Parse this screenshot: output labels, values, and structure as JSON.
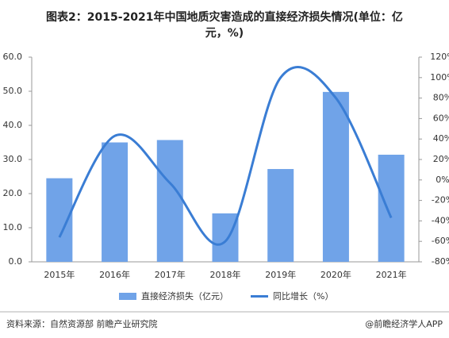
{
  "chart_data": {
    "type": "bar-line",
    "title": "图表2：2015-2021年中国地质灾害造成的直接经济损失情况(单位：亿元，%)",
    "categories": [
      "2015年",
      "2016年",
      "2017年",
      "2018年",
      "2019年",
      "2020年",
      "2021年"
    ],
    "series": [
      {
        "name": "直接经济损失（亿元）",
        "color": "#70a3e8",
        "type": "bar",
        "values": [
          24.5,
          35.0,
          35.7,
          14.2,
          27.2,
          49.8,
          31.4
        ]
      },
      {
        "name": "同比增长（%）",
        "color": "#3a7dd4",
        "type": "line",
        "axis": "y2",
        "values": [
          -56,
          43,
          -3,
          -60,
          100,
          80,
          -37
        ]
      }
    ],
    "ylim": [
      0,
      60
    ],
    "yticks": [
      {
        "value": 0,
        "label": "0.0"
      },
      {
        "value": 10,
        "label": "10.0"
      },
      {
        "value": 20,
        "label": "20.0"
      },
      {
        "value": 30,
        "label": "30.0"
      },
      {
        "value": 40,
        "label": "40.0"
      },
      {
        "value": 50,
        "label": "50.0"
      },
      {
        "value": 60,
        "label": "60.0"
      }
    ],
    "y2lim": [
      -80,
      120
    ],
    "y2ticks": [
      {
        "value": -80,
        "label": "-80%"
      },
      {
        "value": -60,
        "label": "-60%"
      },
      {
        "value": -40,
        "label": "-40%"
      },
      {
        "value": -20,
        "label": "-20%"
      },
      {
        "value": 0,
        "label": "0%"
      },
      {
        "value": 20,
        "label": "20%"
      },
      {
        "value": 40,
        "label": "40%"
      },
      {
        "value": 60,
        "label": "60%"
      },
      {
        "value": 80,
        "label": "80%"
      },
      {
        "value": 100,
        "label": "100%"
      },
      {
        "value": 120,
        "label": "120%"
      }
    ],
    "legend": "bottom",
    "source": "资料来源：自然资源部 前瞻产业研究院",
    "brand": "@前瞻经济学人APP"
  }
}
